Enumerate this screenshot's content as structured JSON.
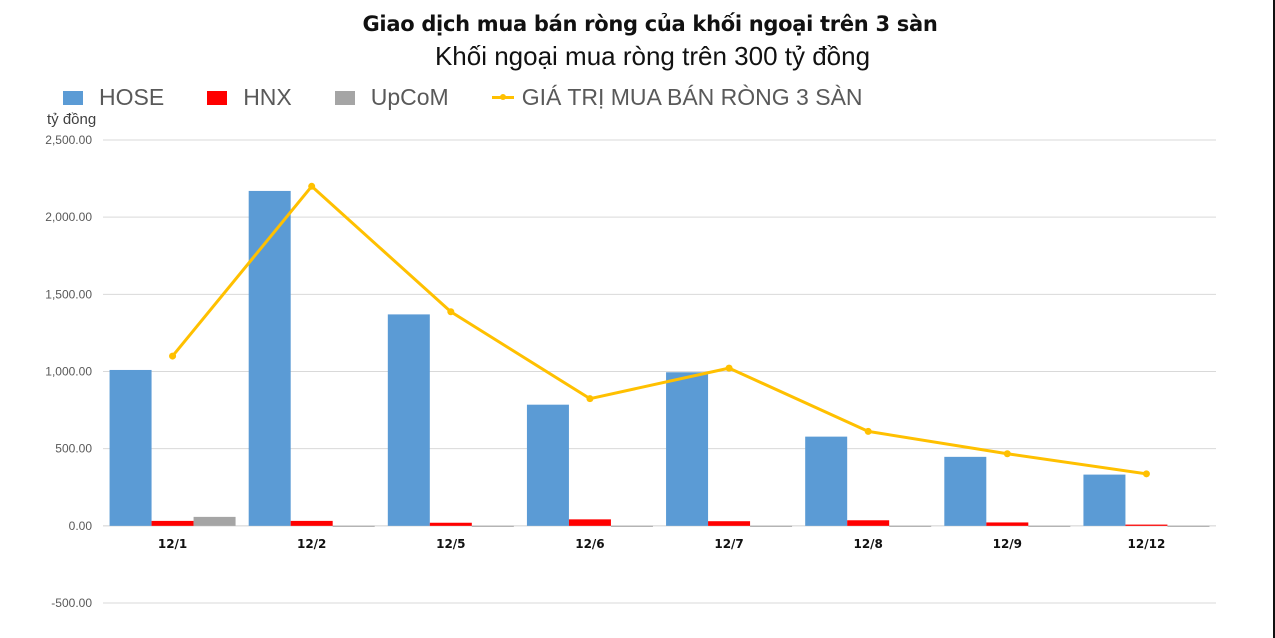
{
  "header": {
    "title": "Giao dịch mua bán ròng của khối ngoại trên 3 sàn",
    "subtitle": "Khối ngoại mua ròng trên 300 tỷ đồng"
  },
  "legend": {
    "items": [
      {
        "label": "HOSE",
        "color": "#5b9bd5",
        "kind": "bar"
      },
      {
        "label": "HNX",
        "color": "#ff0000",
        "kind": "bar"
      },
      {
        "label": "UpCoM",
        "color": "#a5a5a5",
        "kind": "bar"
      },
      {
        "label": "GIÁ TRỊ MUA BÁN RÒNG 3 SÀN",
        "color": "#ffc000",
        "kind": "line"
      }
    ]
  },
  "axis": {
    "unit_label": "tỷ đồng",
    "y_ticks": [
      "2,500.00",
      "2,000.00",
      "1,500.00",
      "1,000.00",
      "500.00",
      "0.00",
      "-500.00"
    ]
  },
  "chart_data": {
    "type": "bar",
    "title": "Giao dịch mua bán ròng của khối ngoại trên 3 sàn",
    "subtitle": "Khối ngoại mua ròng trên 300 tỷ đồng",
    "xlabel": "",
    "ylabel": "tỷ đồng",
    "ylim": [
      -500,
      2500
    ],
    "y_tick_step": 500,
    "grid": true,
    "legend_position": "top",
    "categories": [
      "12/1",
      "12/2",
      "12/5",
      "12/6",
      "12/7",
      "12/8",
      "12/9",
      "12/12"
    ],
    "series": [
      {
        "name": "HOSE",
        "type": "bar",
        "color": "#5b9bd5",
        "values": [
          1010,
          2170,
          1370,
          785,
          995,
          578,
          447,
          332
        ]
      },
      {
        "name": "HNX",
        "type": "bar",
        "color": "#ff0000",
        "values": [
          32,
          32,
          20,
          42,
          30,
          36,
          22,
          8
        ]
      },
      {
        "name": "UpCoM",
        "type": "bar",
        "color": "#a5a5a5",
        "values": [
          58,
          -2,
          -3,
          -3,
          -3,
          -2,
          -2,
          -3
        ]
      },
      {
        "name": "GIÁ TRỊ MUA BÁN RÒNG 3 SÀN",
        "type": "line",
        "color": "#ffc000",
        "values": [
          1100,
          2200,
          1387,
          824,
          1022,
          612,
          467,
          337
        ]
      }
    ]
  }
}
